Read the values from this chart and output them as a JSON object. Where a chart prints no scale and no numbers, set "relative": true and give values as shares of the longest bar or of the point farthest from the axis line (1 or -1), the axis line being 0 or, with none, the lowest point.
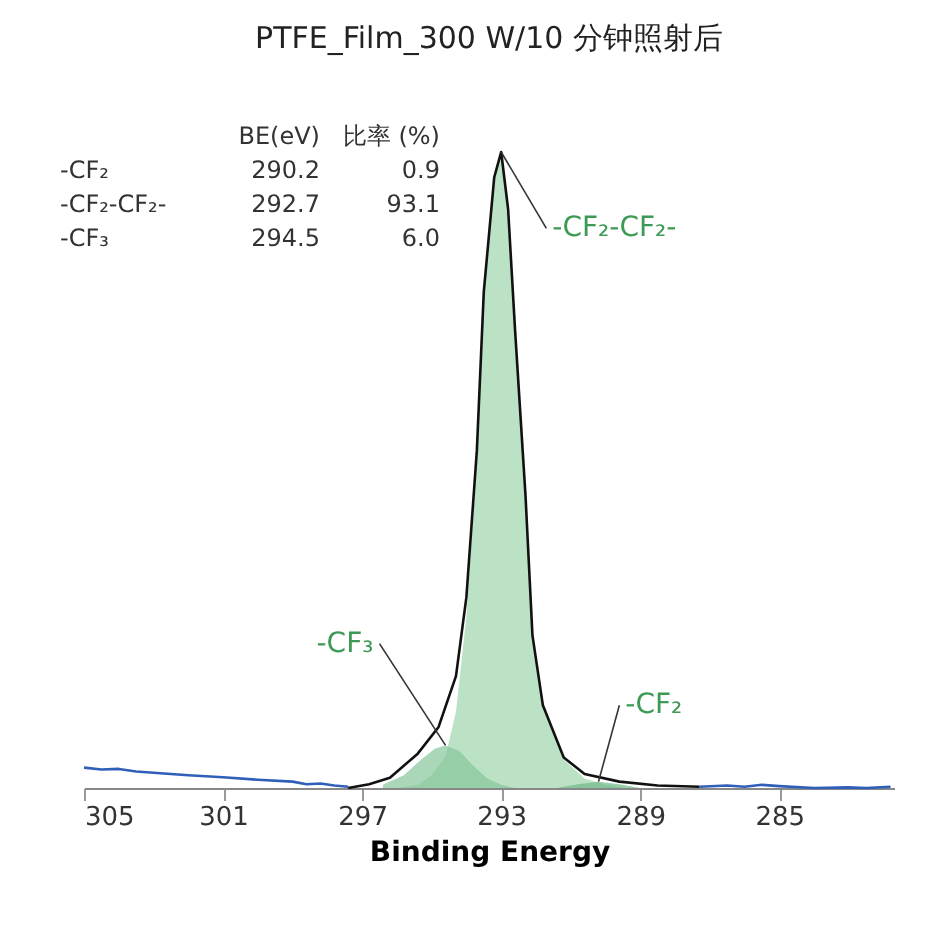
{
  "chart_data": {
    "type": "line",
    "title": "PTFE_Film_300 W/10 分钟照射后",
    "xlabel": "Binding Energy",
    "relative": true,
    "grid": false,
    "xlim": [
      305,
      281.7
    ],
    "xticks": [
      305,
      301,
      297,
      293,
      289,
      285
    ],
    "annotations": [
      "BE(eV)",
      "比率 (%)",
      "-CF₂",
      "290.2",
      "0.9",
      "-CF₂-CF₂-",
      "292.7",
      "93.1",
      "-CF₃",
      "294.5",
      "6.0"
    ],
    "series": [
      {
        "type": "area",
        "name": "-CF₂-CF₂-",
        "color": "#9fd6ae",
        "x": [
          296.0,
          295.4,
          295.0,
          294.6,
          294.3,
          294.0,
          293.7,
          293.5,
          293.2,
          293.0,
          292.8,
          292.6,
          292.3,
          292.1,
          291.8,
          291.2,
          290.6,
          290.0,
          289.4
        ],
        "values": [
          0,
          0.005,
          0.02,
          0.05,
          0.12,
          0.27,
          0.51,
          0.77,
          0.96,
          1.0,
          0.91,
          0.72,
          0.46,
          0.24,
          0.13,
          0.045,
          0.015,
          0.005,
          0
        ]
      },
      {
        "type": "area",
        "name": "-CF₃",
        "color": "#86c69a",
        "x": [
          296.4,
          295.8,
          295.3,
          294.9,
          294.6,
          294.2,
          293.8,
          293.4,
          293.0,
          292.6
        ],
        "values": [
          0.005,
          0.02,
          0.045,
          0.062,
          0.067,
          0.058,
          0.035,
          0.015,
          0.005,
          0
        ]
      },
      {
        "type": "area",
        "name": "-CF₂",
        "color": "#6fb886",
        "x": [
          291.4,
          290.8,
          290.2,
          289.6,
          289.0
        ],
        "values": [
          0,
          0.006,
          0.01,
          0.006,
          0
        ]
      },
      {
        "color": "#2f5fb8",
        "x": [
          305,
          304.5,
          304,
          303.5,
          303,
          302,
          301,
          300,
          299,
          298.6,
          298.2,
          297.8,
          297.4,
          292.0,
          287.3,
          286.5,
          286,
          285.5,
          285,
          284,
          283,
          282.5,
          281.8
        ],
        "values": [
          0.032,
          0.029,
          0.03,
          0.026,
          0.024,
          0.02,
          0.017,
          0.013,
          0.01,
          0.006,
          0.007,
          0.004,
          0.002,
          null,
          0.002,
          0.004,
          0.002,
          0.005,
          0.003,
          0.0,
          0.001,
          0.0,
          0.002
        ]
      },
      {
        "color": "#111111",
        "x": [
          297.4,
          296.8,
          296.2,
          295.4,
          294.8,
          294.3,
          294.0,
          293.7,
          293.5,
          293.2,
          293.0,
          292.8,
          292.6,
          292.3,
          292.1,
          291.8,
          291.2,
          290.6,
          289.6,
          288.5,
          287.3
        ],
        "values": [
          0,
          0.006,
          0.016,
          0.054,
          0.096,
          0.176,
          0.3,
          0.53,
          0.78,
          0.96,
          1.0,
          0.91,
          0.72,
          0.46,
          0.24,
          0.13,
          0.048,
          0.022,
          0.01,
          0.004,
          0.002
        ]
      }
    ]
  }
}
